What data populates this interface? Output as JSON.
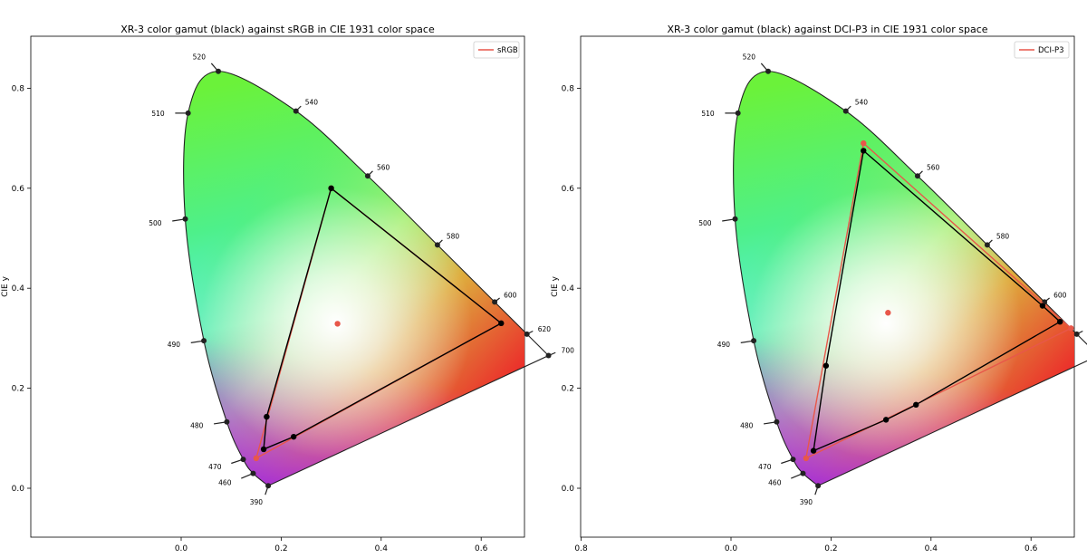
{
  "chart_data": [
    {
      "type": "scatter",
      "title": "XR-3 color gamut (black) against sRGB in CIE 1931 color space",
      "xlabel": "",
      "ylabel": "CIE y",
      "xlim": [
        -0.1,
        0.9
      ],
      "ylim": [
        -0.1,
        0.9
      ],
      "xticks": [
        "0.0",
        "0.2",
        "0.4",
        "0.6",
        "0.8"
      ],
      "yticks": [
        "0.0",
        "0.2",
        "0.4",
        "0.6",
        "0.8"
      ],
      "legend_placement": "top-right",
      "legend": [
        "sRGB"
      ],
      "locus": [
        {
          "wl": "390",
          "x": 0.1741,
          "y": 0.005
        },
        {
          "wl": "460",
          "x": 0.144,
          "y": 0.0297
        },
        {
          "wl": "470",
          "x": 0.1241,
          "y": 0.0578
        },
        {
          "wl": "480",
          "x": 0.0913,
          "y": 0.1327
        },
        {
          "wl": "490",
          "x": 0.0454,
          "y": 0.295
        },
        {
          "wl": "500",
          "x": 0.0082,
          "y": 0.5384
        },
        {
          "wl": "510",
          "x": 0.0139,
          "y": 0.7502
        },
        {
          "wl": "520",
          "x": 0.0743,
          "y": 0.8338
        },
        {
          "wl": "540",
          "x": 0.2296,
          "y": 0.7543
        },
        {
          "wl": "560",
          "x": 0.3731,
          "y": 0.6245
        },
        {
          "wl": "580",
          "x": 0.5125,
          "y": 0.4866
        },
        {
          "wl": "600",
          "x": 0.627,
          "y": 0.3725
        },
        {
          "wl": "620",
          "x": 0.6915,
          "y": 0.3083
        },
        {
          "wl": "700",
          "x": 0.7347,
          "y": 0.2653
        }
      ],
      "series": [
        {
          "name": "XR-3",
          "color": "#000000",
          "points": [
            {
              "x": 0.3,
              "y": 0.6
            },
            {
              "x": 0.64,
              "y": 0.33
            },
            {
              "x": 0.225,
              "y": 0.103
            },
            {
              "x": 0.165,
              "y": 0.078
            },
            {
              "x": 0.171,
              "y": 0.143
            }
          ]
        },
        {
          "name": "sRGB",
          "color": "#e8574a",
          "points": [
            {
              "x": 0.3,
              "y": 0.6
            },
            {
              "x": 0.64,
              "y": 0.33
            },
            {
              "x": 0.15,
              "y": 0.06
            }
          ]
        }
      ],
      "whitepoint": {
        "x": 0.3127,
        "y": 0.329,
        "color": "#e8574a"
      }
    },
    {
      "type": "scatter",
      "title": "XR-3 color gamut (black) against DCI-P3 in CIE 1931 color space",
      "xlabel": "",
      "ylabel": "CIE y",
      "xlim": [
        -0.1,
        0.9
      ],
      "ylim": [
        -0.1,
        0.9
      ],
      "xticks": [
        "0.0",
        "0.2",
        "0.4",
        "0.6",
        "0.8"
      ],
      "yticks": [
        "0.0",
        "0.2",
        "0.4",
        "0.6",
        "0.8"
      ],
      "legend_placement": "top-right",
      "legend": [
        "DCI-P3"
      ],
      "locus": [
        {
          "wl": "390",
          "x": 0.1741,
          "y": 0.005
        },
        {
          "wl": "460",
          "x": 0.144,
          "y": 0.0297
        },
        {
          "wl": "470",
          "x": 0.1241,
          "y": 0.0578
        },
        {
          "wl": "480",
          "x": 0.0913,
          "y": 0.1327
        },
        {
          "wl": "490",
          "x": 0.0454,
          "y": 0.295
        },
        {
          "wl": "500",
          "x": 0.0082,
          "y": 0.5384
        },
        {
          "wl": "510",
          "x": 0.0139,
          "y": 0.7502
        },
        {
          "wl": "520",
          "x": 0.0743,
          "y": 0.8338
        },
        {
          "wl": "540",
          "x": 0.2296,
          "y": 0.7543
        },
        {
          "wl": "560",
          "x": 0.3731,
          "y": 0.6245
        },
        {
          "wl": "580",
          "x": 0.5125,
          "y": 0.4866
        },
        {
          "wl": "600",
          "x": 0.627,
          "y": 0.3725
        },
        {
          "wl": "620",
          "x": 0.6915,
          "y": 0.3083
        },
        {
          "wl": "700",
          "x": 0.7347,
          "y": 0.2653
        }
      ],
      "series": [
        {
          "name": "XR-3",
          "color": "#000000",
          "points": [
            {
              "x": 0.265,
              "y": 0.675
            },
            {
              "x": 0.623,
              "y": 0.365
            },
            {
              "x": 0.658,
              "y": 0.333
            },
            {
              "x": 0.37,
              "y": 0.167
            },
            {
              "x": 0.31,
              "y": 0.137
            },
            {
              "x": 0.165,
              "y": 0.075
            },
            {
              "x": 0.19,
              "y": 0.245
            }
          ]
        },
        {
          "name": "DCI-P3",
          "color": "#e8574a",
          "points": [
            {
              "x": 0.265,
              "y": 0.69
            },
            {
              "x": 0.68,
              "y": 0.32
            },
            {
              "x": 0.15,
              "y": 0.06
            }
          ]
        }
      ],
      "whitepoint": {
        "x": 0.314,
        "y": 0.351,
        "color": "#e8574a"
      }
    }
  ]
}
